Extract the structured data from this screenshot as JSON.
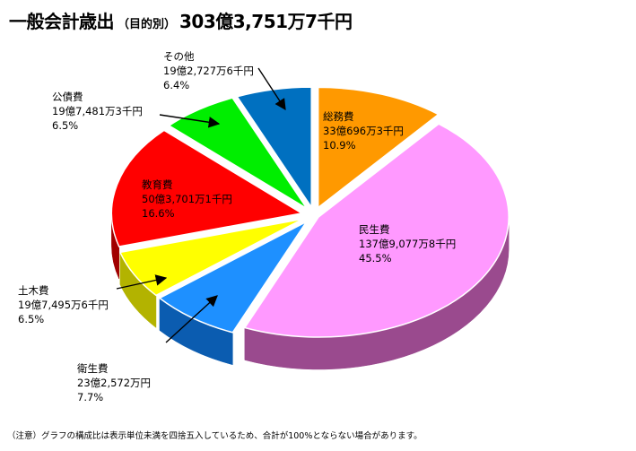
{
  "title": {
    "main": "一般会計歳出",
    "sub": "（目的別）",
    "total": "303億3,751万7千円"
  },
  "footnote": "（注意）グラフの構成比は表示単位未満を四捨五入しているため、合計が100%とならない場合があります。",
  "chart_data": {
    "type": "pie",
    "title": "一般会計歳出（目的別）303億3,751万7千円",
    "style": "3d-exploded",
    "slices": [
      {
        "name": "総務費",
        "amount": "33億696万3千円",
        "percent_label": "10.9%",
        "value": 10.9,
        "color": "#ff9900",
        "side": "#b36b00"
      },
      {
        "name": "民生費",
        "amount": "137億9,077万8千円",
        "percent_label": "45.5%",
        "value": 45.5,
        "color": "#ff99ff",
        "side": "#9a4a8e"
      },
      {
        "name": "衛生費",
        "amount": "23億2,572万円",
        "percent_label": "7.7%",
        "value": 7.7,
        "color": "#1e90ff",
        "side": "#0b5cb0"
      },
      {
        "name": "土木費",
        "amount": "19億7,495万6千円",
        "percent_label": "6.5%",
        "value": 6.5,
        "color": "#ffff00",
        "side": "#b3b300"
      },
      {
        "name": "教育費",
        "amount": "50億3,701万1千円",
        "percent_label": "16.6%",
        "value": 16.6,
        "color": "#ff0000",
        "side": "#a00000"
      },
      {
        "name": "公債費",
        "amount": "19億7,481万3千円",
        "percent_label": "6.5%",
        "value": 6.5,
        "color": "#00ee00",
        "side": "#00a000"
      },
      {
        "name": "その他",
        "amount": "19億2,727万6千円",
        "percent_label": "6.4%",
        "value": 6.4,
        "color": "#0070c0",
        "side": "#004e88"
      }
    ]
  }
}
